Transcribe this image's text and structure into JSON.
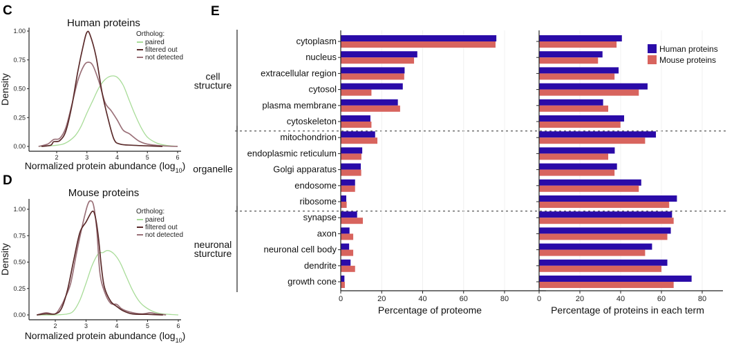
{
  "chart_data": [
    {
      "panel": "C",
      "type": "line",
      "title": "Human proteins",
      "xlabel": "Normalized protein abundance (log10)",
      "ylabel": "Density",
      "xlim": [
        1.3,
        6.1
      ],
      "ylim": [
        0,
        1.05
      ],
      "xticks": [
        "2",
        "3",
        "4",
        "5",
        "6"
      ],
      "yticks": [
        "0.00",
        "0.25",
        "0.50",
        "0.75",
        "1.00"
      ],
      "legend": {
        "title": "Ortholog:",
        "position": "top-right"
      },
      "series": [
        {
          "name": "paired",
          "color": "#a8dc98",
          "points": [
            [
              1.4,
              0.0
            ],
            [
              2.0,
              0.01
            ],
            [
              2.3,
              0.03
            ],
            [
              2.6,
              0.09
            ],
            [
              2.8,
              0.17
            ],
            [
              3.0,
              0.29
            ],
            [
              3.2,
              0.4
            ],
            [
              3.4,
              0.51
            ],
            [
              3.6,
              0.58
            ],
            [
              3.8,
              0.61
            ],
            [
              4.0,
              0.6
            ],
            [
              4.2,
              0.53
            ],
            [
              4.4,
              0.4
            ],
            [
              4.6,
              0.27
            ],
            [
              4.8,
              0.16
            ],
            [
              5.0,
              0.08
            ],
            [
              5.3,
              0.03
            ],
            [
              5.6,
              0.01
            ],
            [
              6.0,
              0.0
            ]
          ]
        },
        {
          "name": "filtered out",
          "color": "#5a2a2a",
          "points": [
            [
              1.5,
              0.0
            ],
            [
              1.8,
              0.01
            ],
            [
              1.9,
              0.04
            ],
            [
              2.1,
              0.05
            ],
            [
              2.3,
              0.13
            ],
            [
              2.5,
              0.35
            ],
            [
              2.7,
              0.65
            ],
            [
              2.9,
              0.9
            ],
            [
              3.0,
              0.99
            ],
            [
              3.1,
              0.97
            ],
            [
              3.3,
              0.78
            ],
            [
              3.5,
              0.47
            ],
            [
              3.7,
              0.24
            ],
            [
              3.9,
              0.06
            ],
            [
              4.1,
              0.02
            ],
            [
              4.5,
              0.01
            ],
            [
              5.0,
              0.005
            ],
            [
              5.5,
              0.0
            ]
          ]
        },
        {
          "name": "not detected",
          "color": "#9a7078",
          "points": [
            [
              1.4,
              0.0
            ],
            [
              1.7,
              0.02
            ],
            [
              1.9,
              0.06
            ],
            [
              2.1,
              0.07
            ],
            [
              2.3,
              0.16
            ],
            [
              2.5,
              0.36
            ],
            [
              2.7,
              0.57
            ],
            [
              2.9,
              0.7
            ],
            [
              3.05,
              0.73
            ],
            [
              3.2,
              0.7
            ],
            [
              3.4,
              0.56
            ],
            [
              3.6,
              0.38
            ],
            [
              3.8,
              0.31
            ],
            [
              4.0,
              0.23
            ],
            [
              4.2,
              0.14
            ],
            [
              4.4,
              0.11
            ],
            [
              4.7,
              0.05
            ],
            [
              5.0,
              0.02
            ],
            [
              5.5,
              0.005
            ],
            [
              6.0,
              0.0
            ]
          ]
        }
      ]
    },
    {
      "panel": "D",
      "type": "line",
      "title": "Mouse proteins",
      "xlabel": "Normalized protein abundance (log10)",
      "ylabel": "Density",
      "xlim": [
        1.3,
        6.1
      ],
      "ylim": [
        0,
        1.12
      ],
      "xticks": [
        "2",
        "3",
        "4",
        "5",
        "6"
      ],
      "yticks": [
        "0.00",
        "0.25",
        "0.50",
        "0.75",
        "1.00"
      ],
      "legend": {
        "title": "Ortholog:",
        "position": "top-right"
      },
      "series": [
        {
          "name": "paired",
          "color": "#a8dc98",
          "points": [
            [
              1.4,
              0.0
            ],
            [
              2.0,
              0.0
            ],
            [
              2.4,
              0.01
            ],
            [
              2.6,
              0.04
            ],
            [
              2.8,
              0.14
            ],
            [
              3.0,
              0.3
            ],
            [
              3.2,
              0.47
            ],
            [
              3.4,
              0.58
            ],
            [
              3.55,
              0.59
            ],
            [
              3.7,
              0.61
            ],
            [
              3.9,
              0.58
            ],
            [
              4.1,
              0.5
            ],
            [
              4.3,
              0.37
            ],
            [
              4.5,
              0.24
            ],
            [
              4.7,
              0.14
            ],
            [
              4.9,
              0.08
            ],
            [
              5.2,
              0.03
            ],
            [
              5.5,
              0.01
            ],
            [
              6.0,
              0.0
            ]
          ]
        },
        {
          "name": "filtered out",
          "color": "#5a2a2a",
          "points": [
            [
              1.4,
              0.0
            ],
            [
              1.7,
              0.01
            ],
            [
              2.0,
              0.01
            ],
            [
              2.2,
              0.06
            ],
            [
              2.4,
              0.24
            ],
            [
              2.6,
              0.52
            ],
            [
              2.8,
              0.78
            ],
            [
              3.0,
              0.88
            ],
            [
              3.2,
              0.98
            ],
            [
              3.3,
              0.93
            ],
            [
              3.4,
              0.74
            ],
            [
              3.5,
              0.45
            ],
            [
              3.6,
              0.26
            ],
            [
              3.8,
              0.13
            ],
            [
              4.0,
              0.08
            ],
            [
              4.2,
              0.04
            ],
            [
              4.5,
              0.01
            ],
            [
              5.0,
              0.005
            ],
            [
              5.5,
              0.0
            ]
          ]
        },
        {
          "name": "not detected",
          "color": "#9a7078",
          "points": [
            [
              1.4,
              0.0
            ],
            [
              1.7,
              0.02
            ],
            [
              2.0,
              0.01
            ],
            [
              2.2,
              0.09
            ],
            [
              2.3,
              0.15
            ],
            [
              2.5,
              0.3
            ],
            [
              2.7,
              0.6
            ],
            [
              2.9,
              0.87
            ],
            [
              3.05,
              1.04
            ],
            [
              3.15,
              1.08
            ],
            [
              3.25,
              1.03
            ],
            [
              3.35,
              0.8
            ],
            [
              3.45,
              0.4
            ],
            [
              3.6,
              0.22
            ],
            [
              3.8,
              0.11
            ],
            [
              4.0,
              0.1
            ],
            [
              4.15,
              0.06
            ],
            [
              4.4,
              0.03
            ],
            [
              4.8,
              0.01
            ],
            [
              5.1,
              0.02
            ],
            [
              5.3,
              0.01
            ],
            [
              5.6,
              0.0
            ]
          ]
        }
      ]
    },
    {
      "panel": "E",
      "type": "bar",
      "orientation": "horizontal",
      "categories": [
        "cytoplasm",
        "nucleus",
        "extracellular region",
        "cytosol",
        "plasma membrane",
        "cytoskeleton",
        "mitochondrion",
        "endoplasmic reticulum",
        "Golgi apparatus",
        "endosome",
        "ribosome",
        "synapse",
        "axon",
        "neuronal cell body",
        "dendrite",
        "growth cone"
      ],
      "groups": [
        {
          "label_lines": [
            "cell",
            "structure"
          ],
          "from": 0,
          "to": 5
        },
        {
          "label_lines": [
            "organelle"
          ],
          "from": 6,
          "to": 10
        },
        {
          "label_lines": [
            "neuronal",
            "sturcture"
          ],
          "from": 11,
          "to": 15
        }
      ],
      "legend": {
        "position": "top-right",
        "entries": [
          "Human proteins",
          "Mouse proteins"
        ]
      },
      "colors": {
        "Human proteins": "#2a0ba8",
        "Mouse proteins": "#d8645e"
      },
      "subplots": [
        {
          "xlabel": "Percentage of proteome",
          "xlim": [
            0,
            90
          ],
          "xticks": [
            "0",
            "20",
            "40",
            "60",
            "80"
          ],
          "series": [
            {
              "name": "Human proteins",
              "values": [
                76.0,
                37.4,
                31.2,
                30.3,
                27.9,
                14.5,
                16.8,
                10.5,
                9.8,
                7.0,
                2.7,
                8.0,
                4.3,
                4.1,
                4.8,
                1.8
              ]
            },
            {
              "name": "Mouse proteins",
              "values": [
                75.6,
                35.8,
                31.0,
                15.0,
                29.0,
                15.0,
                17.9,
                10.1,
                10.0,
                7.0,
                2.9,
                10.8,
                6.1,
                6.1,
                7.0,
                2.0
              ]
            }
          ]
        },
        {
          "xlabel": "Percentage of proteins in each term",
          "xlim": [
            0,
            90
          ],
          "xticks": [
            "0",
            "20",
            "40",
            "60",
            "80"
          ],
          "series": [
            {
              "name": "Human proteins",
              "values": [
                40.6,
                31.1,
                39.0,
                53.2,
                31.4,
                41.7,
                57.3,
                37.1,
                38.2,
                50.1,
                67.6,
                65.2,
                64.6,
                55.4,
                62.9,
                74.8
              ]
            },
            {
              "name": "Mouse proteins",
              "values": [
                38.0,
                28.9,
                37.0,
                48.9,
                33.9,
                39.9,
                52.0,
                33.9,
                37.0,
                48.9,
                63.8,
                66.0,
                62.9,
                52.0,
                60.0,
                66.0
              ]
            }
          ]
        }
      ]
    }
  ]
}
